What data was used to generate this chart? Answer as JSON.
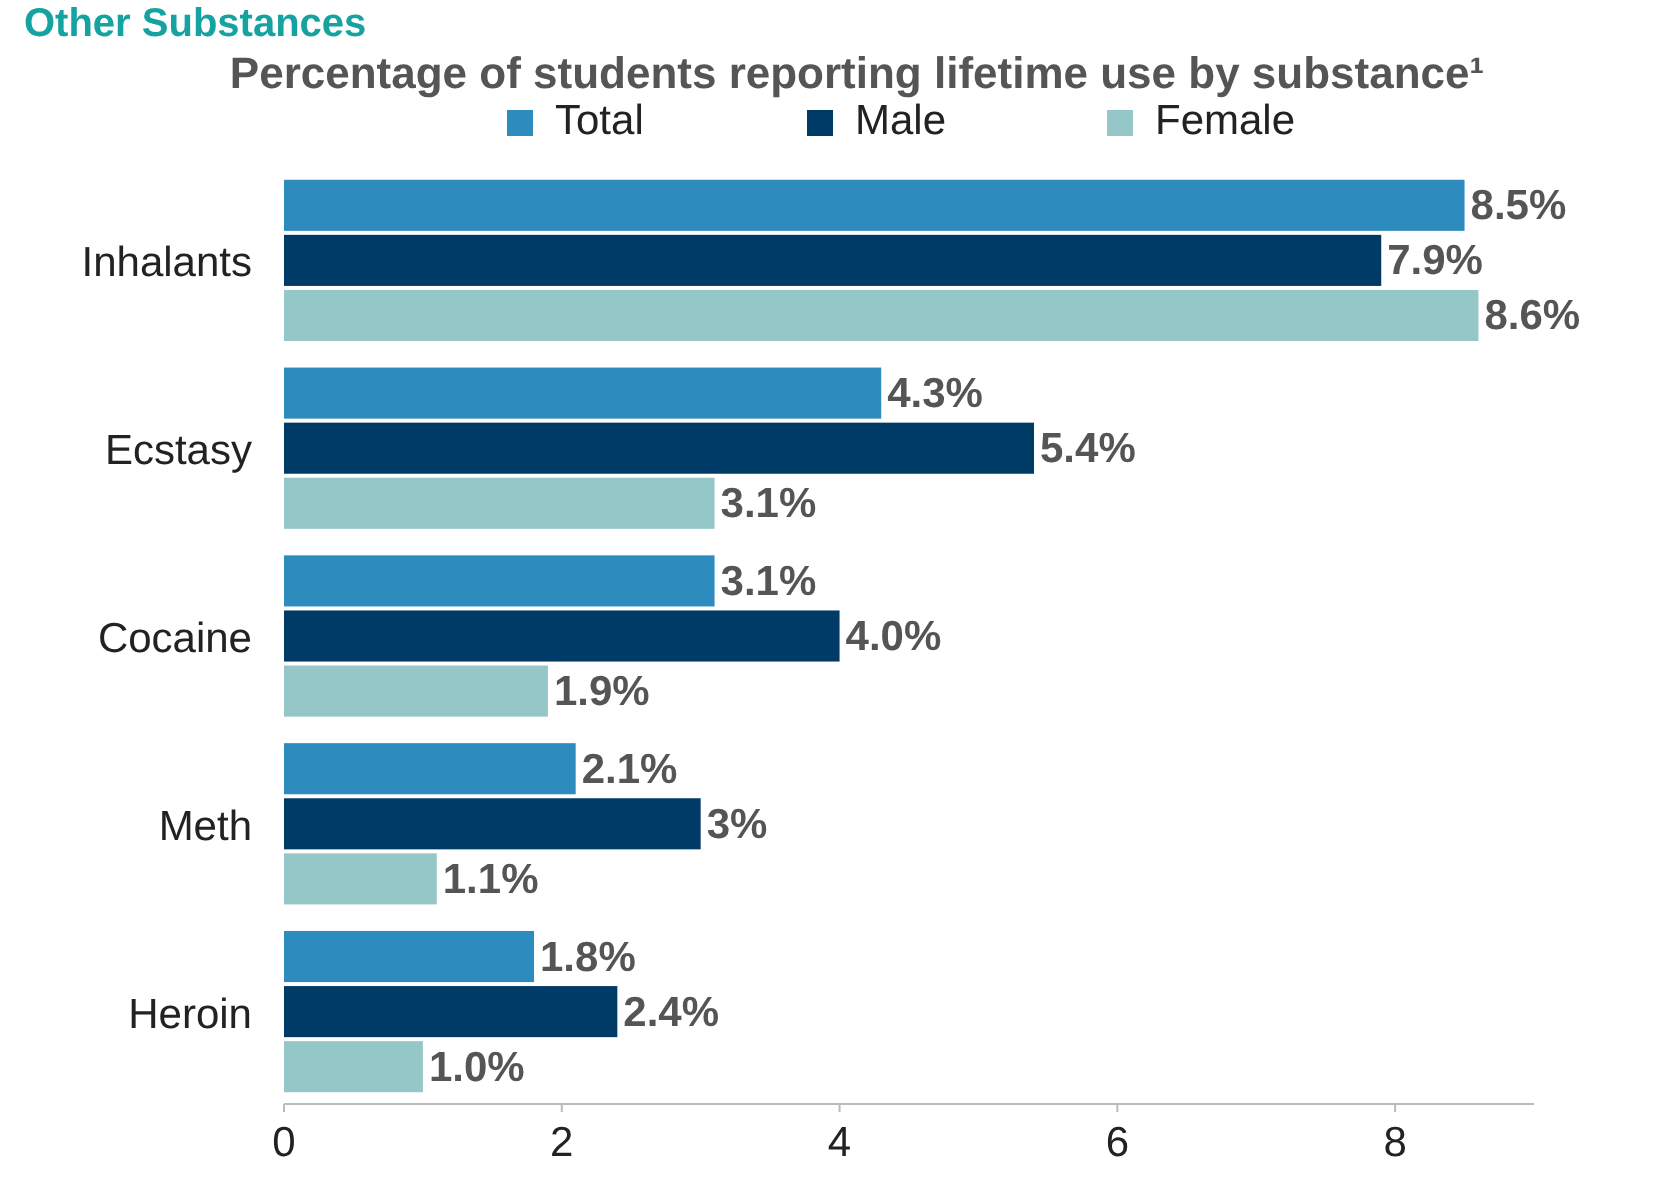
{
  "chart_data": {
    "type": "bar",
    "orientation": "horizontal",
    "title": "Other Substances",
    "subtitle": "Percentage of students reporting lifetime use by substance¹",
    "categories": [
      "Inhalants",
      "Ecstasy",
      "Cocaine",
      "Meth",
      "Heroin"
    ],
    "series": [
      {
        "name": "Total",
        "color": "#2e8bbd",
        "values": [
          8.5,
          4.3,
          3.1,
          2.1,
          1.8
        ],
        "value_labels": [
          "8.5%",
          "4.3%",
          "3.1%",
          "2.1%",
          "1.8%"
        ]
      },
      {
        "name": "Male",
        "color": "#003a66",
        "values": [
          7.9,
          5.4,
          4.0,
          3,
          2.4
        ],
        "value_labels": [
          "7.9%",
          "5.4%",
          "4.0%",
          "3%",
          "2.4%"
        ]
      },
      {
        "name": "Female",
        "color": "#95c6c8",
        "values": [
          8.6,
          3.1,
          1.9,
          1.1,
          1.0
        ],
        "value_labels": [
          "8.6%",
          "3.1%",
          "1.9%",
          "1.1%",
          "1.0%"
        ]
      }
    ],
    "xlim": [
      0,
      9
    ],
    "xticks": [
      0,
      2,
      4,
      6,
      8
    ],
    "grid": false,
    "legend": "top"
  }
}
